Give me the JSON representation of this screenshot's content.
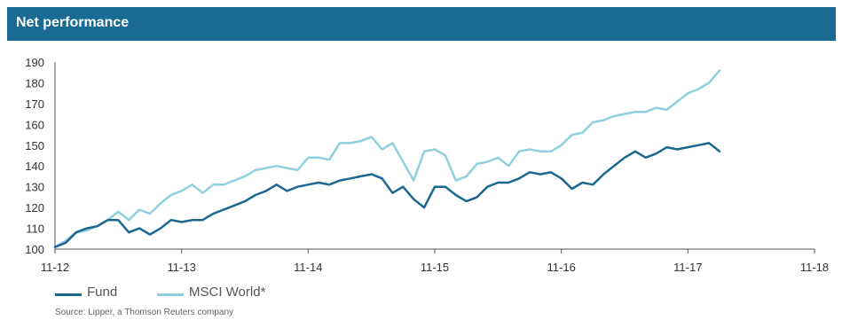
{
  "header": {
    "title": "Net performance"
  },
  "legend": {
    "fund_label": "Fund",
    "msci_label": "MSCI World*"
  },
  "source": "Source: Lipper, a Thomson Reuters company",
  "colors": {
    "header_bg": "#1a6b93",
    "fund": "#1b6790",
    "msci": "#8fd0e0",
    "axis": "#555555"
  },
  "chart_data": {
    "type": "line",
    "title": "Net performance",
    "xlabel": "",
    "ylabel": "",
    "x_ticks": [
      "11-12",
      "11-13",
      "11-14",
      "11-15",
      "11-16",
      "11-17",
      "11-18"
    ],
    "y_ticks": [
      100,
      110,
      120,
      130,
      140,
      150,
      160,
      170,
      180,
      190
    ],
    "ylim": [
      100,
      190
    ],
    "grid": false,
    "legend_position": "bottom-left",
    "x_unit": "months since 11-12",
    "x": [
      0,
      1,
      2,
      3,
      4,
      5,
      6,
      7,
      8,
      9,
      10,
      11,
      12,
      13,
      14,
      15,
      16,
      17,
      18,
      19,
      20,
      21,
      22,
      23,
      24,
      25,
      26,
      27,
      28,
      29,
      30,
      31,
      32,
      33,
      34,
      35,
      36,
      37,
      38,
      39,
      40,
      41,
      42,
      43,
      44,
      45,
      46,
      47,
      48,
      49,
      50,
      51,
      52,
      53,
      54,
      55,
      56,
      57,
      58,
      59,
      60,
      61,
      62,
      63
    ],
    "series": [
      {
        "name": "Fund",
        "values": [
          101,
          103,
          108,
          110,
          111,
          114,
          114,
          108,
          110,
          107,
          110,
          114,
          113,
          114,
          114,
          117,
          119,
          121,
          123,
          126,
          128,
          131,
          128,
          130,
          131,
          132,
          131,
          133,
          134,
          135,
          136,
          134,
          127,
          130,
          124,
          120,
          130,
          130,
          126,
          123,
          125,
          130,
          132,
          132,
          134,
          137,
          136,
          137,
          134,
          129,
          132,
          131,
          136,
          140,
          144,
          147,
          144,
          146,
          149,
          148,
          149,
          150,
          151,
          147
        ]
      },
      {
        "name": "MSCI World*",
        "values": [
          101,
          104,
          108,
          109,
          111,
          114,
          118,
          114,
          119,
          117,
          122,
          126,
          128,
          131,
          127,
          131,
          131,
          133,
          135,
          138,
          139,
          140,
          139,
          138,
          144,
          144,
          143,
          151,
          151,
          152,
          154,
          148,
          151,
          142,
          133,
          147,
          148,
          145,
          133,
          135,
          141,
          142,
          144,
          140,
          147,
          148,
          147,
          147,
          150,
          155,
          156,
          161,
          162,
          164,
          165,
          166,
          166,
          168,
          167,
          171,
          175,
          177,
          180,
          186
        ]
      }
    ]
  }
}
